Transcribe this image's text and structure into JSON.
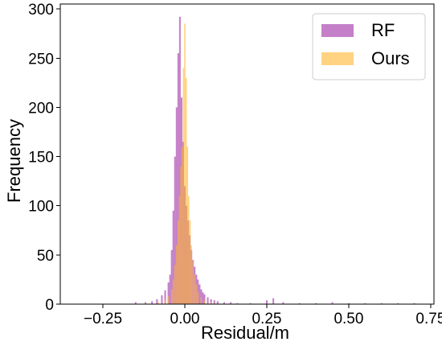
{
  "chart_data": {
    "type": "histogram",
    "title": "",
    "xlabel": "Residual/m",
    "ylabel": "Frequency",
    "xlim": [
      -0.38,
      0.76
    ],
    "ylim": [
      0,
      305
    ],
    "xticks": [
      -0.25,
      0.0,
      0.25,
      0.5,
      0.75
    ],
    "xtick_labels": [
      "−0.25",
      "0.00",
      "0.25",
      "0.50",
      "0.75"
    ],
    "yticks": [
      0,
      50,
      100,
      150,
      200,
      250,
      300
    ],
    "ytick_labels": [
      "0",
      "50",
      "100",
      "150",
      "200",
      "250",
      "300"
    ],
    "grid": false,
    "legend_position": "top-right",
    "series": [
      {
        "name": "RF",
        "color": "#a43bab",
        "opacity": 0.65,
        "bin_width": 0.005,
        "x": [
          -0.15,
          -0.12,
          -0.1,
          -0.085,
          -0.07,
          -0.06,
          -0.05,
          -0.045,
          -0.04,
          -0.035,
          -0.03,
          -0.025,
          -0.02,
          -0.015,
          -0.01,
          -0.005,
          0.0,
          0.005,
          0.01,
          0.015,
          0.02,
          0.025,
          0.03,
          0.035,
          0.04,
          0.045,
          0.05,
          0.055,
          0.06,
          0.07,
          0.08,
          0.09,
          0.1,
          0.12,
          0.14,
          0.16,
          0.2,
          0.25,
          0.27,
          0.3,
          0.35,
          0.4,
          0.45,
          0.5,
          0.55,
          0.6,
          0.65,
          0.7
        ],
        "values": [
          2,
          2,
          3,
          5,
          9,
          14,
          22,
          30,
          55,
          95,
          150,
          200,
          255,
          292,
          210,
          165,
          120,
          100,
          85,
          70,
          55,
          45,
          38,
          30,
          25,
          20,
          15,
          12,
          10,
          7,
          5,
          4,
          3,
          2,
          2,
          1,
          1,
          4,
          6,
          2,
          1,
          1,
          2,
          1,
          1,
          1,
          1,
          1
        ]
      },
      {
        "name": "Ours",
        "color": "#ffb52e",
        "opacity": 0.6,
        "bin_width": 0.004,
        "x": [
          -0.12,
          -0.08,
          -0.06,
          -0.05,
          -0.04,
          -0.035,
          -0.03,
          -0.025,
          -0.02,
          -0.016,
          -0.012,
          -0.008,
          -0.004,
          0.0,
          0.004,
          0.008,
          0.012,
          0.016,
          0.02,
          0.025,
          0.03,
          0.035,
          0.04,
          0.05,
          0.06,
          0.08
        ],
        "values": [
          1,
          2,
          4,
          8,
          15,
          25,
          40,
          60,
          85,
          110,
          140,
          160,
          240,
          285,
          230,
          160,
          110,
          85,
          60,
          45,
          30,
          20,
          12,
          7,
          4,
          2
        ]
      }
    ]
  }
}
